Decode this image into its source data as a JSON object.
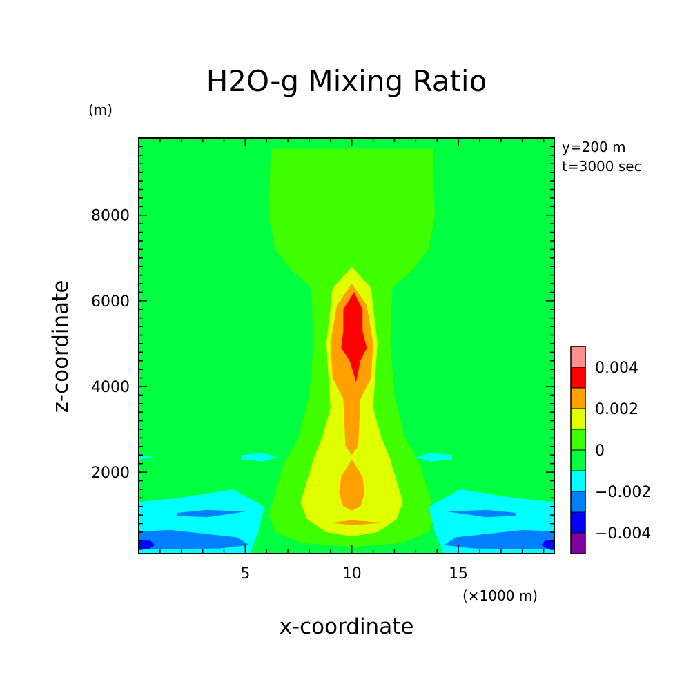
{
  "chart_data": {
    "type": "heatmap",
    "title": "H2O-g Mixing Ratio",
    "xlabel": "x-coordinate",
    "ylabel": "z-coordinate",
    "x_unit": "(×1000 m)",
    "y_unit": "(m)",
    "annotations": [
      "y=200 m",
      "t=3000 sec"
    ],
    "xlim": [
      0,
      19.5
    ],
    "ylim": [
      100,
      9800
    ],
    "x_ticks": [
      5,
      10,
      15
    ],
    "x_tick_labels": [
      "5",
      "10",
      "15"
    ],
    "y_ticks": [
      2000,
      4000,
      6000,
      8000
    ],
    "y_tick_labels": [
      "2000",
      "4000",
      "6000",
      "8000"
    ],
    "grid": false,
    "colorbar": {
      "levels": [
        -0.005,
        -0.004,
        -0.003,
        -0.002,
        -0.001,
        0,
        0.001,
        0.002,
        0.003,
        0.004,
        0.005
      ],
      "colors": [
        "#8000a0",
        "#0000ff",
        "#0080ff",
        "#00ffff",
        "#00ff40",
        "#40ff00",
        "#e0ff00",
        "#ffa000",
        "#ff0000",
        "#ff9090"
      ],
      "tick_values": [
        -0.004,
        -0.002,
        0,
        0.002,
        0.004
      ],
      "tick_labels": [
        "−0.004",
        "−0.002",
        "0",
        "0.002",
        "0.004"
      ]
    },
    "regions": [
      {
        "level": 0.0005,
        "points": [
          [
            6.2,
            9.55
          ],
          [
            13.8,
            9.55
          ],
          [
            13.9,
            8.0
          ],
          [
            13.6,
            7.2
          ],
          [
            12.8,
            6.7
          ],
          [
            11.9,
            6.3
          ],
          [
            11.8,
            5.0
          ],
          [
            12.0,
            3.8
          ],
          [
            12.5,
            2.8
          ],
          [
            13.2,
            2.2
          ],
          [
            13.6,
            1.5
          ],
          [
            13.9,
            1.0
          ],
          [
            13.6,
            0.6
          ],
          [
            12.4,
            0.35
          ],
          [
            10.0,
            0.25
          ],
          [
            7.6,
            0.35
          ],
          [
            6.4,
            0.6
          ],
          [
            6.1,
            1.0
          ],
          [
            6.4,
            1.5
          ],
          [
            6.8,
            2.2
          ],
          [
            7.5,
            2.8
          ],
          [
            8.0,
            3.8
          ],
          [
            8.2,
            5.0
          ],
          [
            8.1,
            6.3
          ],
          [
            7.2,
            6.7
          ],
          [
            6.4,
            7.2
          ],
          [
            6.1,
            8.0
          ]
        ]
      },
      {
        "level": 0.0015,
        "points": [
          [
            10.0,
            6.8
          ],
          [
            10.9,
            6.3
          ],
          [
            11.2,
            5.0
          ],
          [
            11.0,
            3.5
          ],
          [
            11.4,
            2.8
          ],
          [
            11.8,
            2.3
          ],
          [
            12.1,
            1.8
          ],
          [
            12.4,
            1.3
          ],
          [
            12.1,
            0.9
          ],
          [
            11.2,
            0.6
          ],
          [
            10.0,
            0.5
          ],
          [
            8.8,
            0.6
          ],
          [
            7.9,
            0.9
          ],
          [
            7.6,
            1.3
          ],
          [
            7.9,
            1.8
          ],
          [
            8.2,
            2.3
          ],
          [
            8.6,
            2.8
          ],
          [
            9.0,
            3.5
          ],
          [
            8.8,
            5.0
          ],
          [
            9.1,
            6.3
          ]
        ]
      },
      {
        "level": 0.0025,
        "points": [
          [
            10.0,
            6.4
          ],
          [
            10.7,
            5.9
          ],
          [
            11.0,
            5.0
          ],
          [
            10.9,
            4.2
          ],
          [
            10.4,
            3.7
          ],
          [
            10.3,
            2.6
          ],
          [
            10.0,
            2.4
          ],
          [
            9.7,
            2.6
          ],
          [
            9.6,
            3.7
          ],
          [
            9.1,
            4.2
          ],
          [
            9.0,
            5.0
          ],
          [
            9.3,
            5.9
          ]
        ]
      },
      {
        "level": 0.0025,
        "points": [
          [
            10.0,
            2.3
          ],
          [
            10.5,
            1.9
          ],
          [
            10.6,
            1.5
          ],
          [
            10.4,
            1.2
          ],
          [
            10.0,
            1.1
          ],
          [
            9.6,
            1.2
          ],
          [
            9.4,
            1.5
          ],
          [
            9.5,
            1.9
          ]
        ]
      },
      {
        "level": 0.0035,
        "points": [
          [
            10.1,
            6.2
          ],
          [
            10.5,
            5.8
          ],
          [
            10.5,
            5.3
          ],
          [
            10.7,
            4.9
          ],
          [
            10.4,
            4.6
          ],
          [
            10.2,
            4.1
          ],
          [
            9.9,
            4.6
          ],
          [
            9.5,
            4.9
          ],
          [
            9.6,
            5.3
          ],
          [
            9.6,
            5.8
          ]
        ]
      },
      {
        "level": 0.0025,
        "points": [
          [
            9.0,
            0.82
          ],
          [
            10.0,
            0.88
          ],
          [
            11.5,
            0.82
          ],
          [
            10.0,
            0.76
          ]
        ]
      },
      {
        "level": -0.0015,
        "points": [
          [
            0,
            1.3
          ],
          [
            1.9,
            1.4
          ],
          [
            4.4,
            1.6
          ],
          [
            5.9,
            1.2
          ],
          [
            5.6,
            0.6
          ],
          [
            5.2,
            0.1
          ],
          [
            0,
            0.1
          ]
        ]
      },
      {
        "level": -0.0015,
        "points": [
          [
            19.5,
            1.3
          ],
          [
            17.6,
            1.4
          ],
          [
            15.1,
            1.6
          ],
          [
            13.6,
            1.2
          ],
          [
            13.9,
            0.6
          ],
          [
            14.3,
            0.1
          ],
          [
            19.5,
            0.1
          ]
        ]
      },
      {
        "level": -0.0015,
        "points": [
          [
            4.8,
            2.4
          ],
          [
            5.8,
            2.45
          ],
          [
            6.5,
            2.35
          ],
          [
            5.8,
            2.25
          ],
          [
            4.8,
            2.3
          ]
        ]
      },
      {
        "level": -0.0015,
        "points": [
          [
            14.7,
            2.4
          ],
          [
            13.7,
            2.45
          ],
          [
            13.0,
            2.35
          ],
          [
            13.7,
            2.25
          ],
          [
            14.7,
            2.3
          ]
        ]
      },
      {
        "level": -0.0015,
        "points": [
          [
            0,
            2.4
          ],
          [
            0.7,
            2.35
          ],
          [
            0,
            2.3
          ]
        ]
      },
      {
        "level": -0.0025,
        "points": [
          [
            1.8,
            1.05
          ],
          [
            3.2,
            1.12
          ],
          [
            5.0,
            1.08
          ],
          [
            3.2,
            0.95
          ],
          [
            1.8,
            0.98
          ]
        ]
      },
      {
        "level": -0.0025,
        "points": [
          [
            17.7,
            1.05
          ],
          [
            16.3,
            1.12
          ],
          [
            14.5,
            1.08
          ],
          [
            16.3,
            0.95
          ],
          [
            17.7,
            0.98
          ]
        ]
      },
      {
        "level": -0.0025,
        "points": [
          [
            0,
            0.62
          ],
          [
            1.5,
            0.65
          ],
          [
            4.6,
            0.48
          ],
          [
            5.2,
            0.3
          ],
          [
            3.8,
            0.22
          ],
          [
            0,
            0.2
          ]
        ]
      },
      {
        "level": -0.0025,
        "points": [
          [
            19.5,
            0.62
          ],
          [
            18.0,
            0.65
          ],
          [
            14.9,
            0.48
          ],
          [
            14.3,
            0.3
          ],
          [
            15.7,
            0.22
          ],
          [
            19.5,
            0.2
          ]
        ]
      },
      {
        "level": -0.0035,
        "points": [
          [
            0,
            0.42
          ],
          [
            0.55,
            0.4
          ],
          [
            0.75,
            0.3
          ],
          [
            0.45,
            0.2
          ],
          [
            0,
            0.2
          ]
        ]
      },
      {
        "level": -0.0035,
        "points": [
          [
            19.5,
            0.42
          ],
          [
            19.05,
            0.4
          ],
          [
            18.9,
            0.3
          ],
          [
            19.2,
            0.2
          ],
          [
            19.5,
            0.2
          ]
        ]
      }
    ]
  }
}
